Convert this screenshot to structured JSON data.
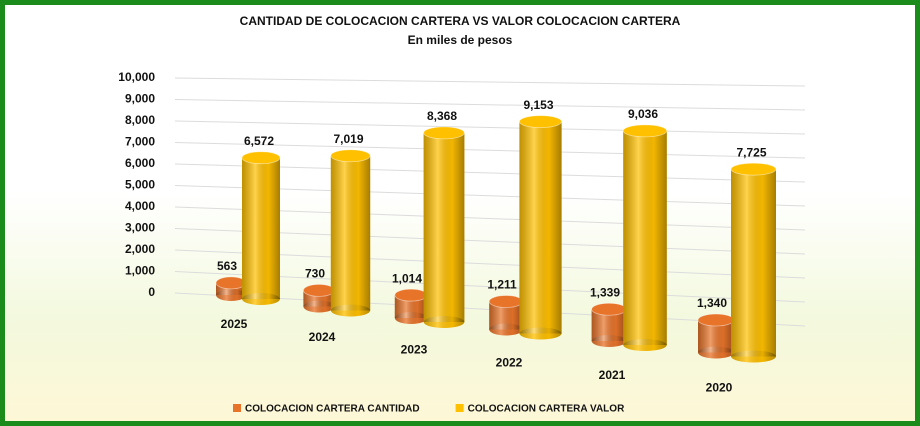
{
  "chart_data": {
    "type": "bar3d",
    "title": "CANTIDAD DE COLOCACION CARTERA VS VALOR COLOCACION CARTERA",
    "subtitle": "En miles de pesos",
    "categories": [
      "2025",
      "2024",
      "2023",
      "2022",
      "2021",
      "2020"
    ],
    "series": [
      {
        "name": "COLOCACION CARTERA CANTIDAD",
        "color": "#e8742a",
        "values": [
          563,
          730,
          1014,
          1211,
          1339,
          1340
        ],
        "value_labels": [
          "563",
          "730",
          "1,014",
          "1,211",
          "1,339",
          "1,340"
        ]
      },
      {
        "name": "COLOCACION CARTERA VALOR",
        "color": "#ffc000",
        "values": [
          6572,
          7019,
          8368,
          9153,
          9036,
          7725
        ],
        "value_labels": [
          "6,572",
          "7,019",
          "8,368",
          "9,153",
          "9,036",
          "7,725"
        ]
      }
    ],
    "ylim": [
      0,
      10000
    ],
    "yticks": [
      0,
      {
        "value": 1000,
        "label": "1,000"
      },
      {
        "value": 2000,
        "label": "2,000"
      },
      {
        "value": 3000,
        "label": "3,000"
      },
      {
        "value": 4000,
        "label": "4,000"
      },
      {
        "value": 5000,
        "label": "5,000"
      },
      {
        "value": 6000,
        "label": "6,000"
      },
      {
        "value": 7000,
        "label": "7,000"
      },
      {
        "value": 8000,
        "label": "8,000"
      },
      {
        "value": 9000,
        "label": "9,000"
      },
      {
        "value": 10000,
        "label": "10,000"
      }
    ],
    "grid": true,
    "legend": "bottom"
  }
}
